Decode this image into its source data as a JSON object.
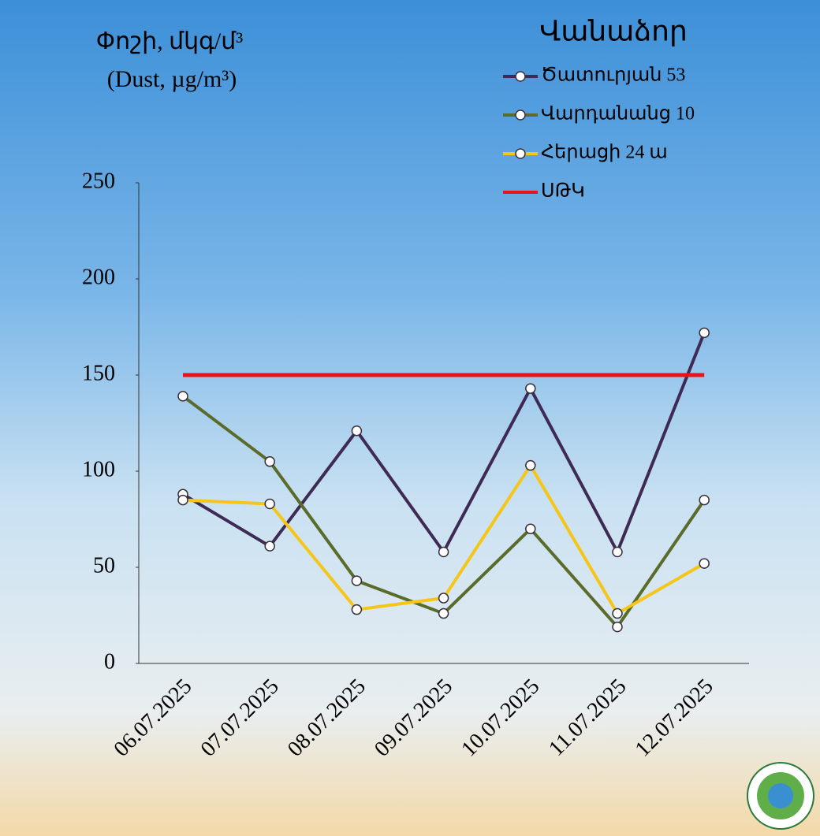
{
  "chart_data": {
    "type": "line",
    "y_label": [
      "Փոշի, մկգ/մ³",
      "(Dust, µg/m³)"
    ],
    "legend_title": "Վանաձոր",
    "legend_position": "top-right",
    "categories": [
      "06.07.2025",
      "07.07.2025",
      "08.07.2025",
      "09.07.2025",
      "10.07.2025",
      "11.07.2025",
      "12.07.2025"
    ],
    "series": [
      {
        "name": "Ծատուրյան 53",
        "color": "#3f2a56",
        "markers": true,
        "values": [
          88,
          61,
          121,
          58,
          143,
          58,
          172
        ]
      },
      {
        "name": "Վարդանանց 10",
        "color": "#5a6b2a",
        "markers": true,
        "values": [
          139,
          105,
          43,
          26,
          70,
          19,
          85
        ]
      },
      {
        "name": "Հերացի 24 ա",
        "color": "#f5c518",
        "markers": true,
        "values": [
          85,
          83,
          28,
          34,
          103,
          26,
          52
        ]
      },
      {
        "name": "ՍԹԿ",
        "color": "#e8141c",
        "markers": false,
        "values": [
          150,
          150,
          150,
          150,
          150,
          150,
          150
        ]
      }
    ],
    "ylim": [
      0,
      250
    ],
    "yticks": [
      0,
      50,
      100,
      150,
      200,
      250
    ],
    "grid": false
  }
}
